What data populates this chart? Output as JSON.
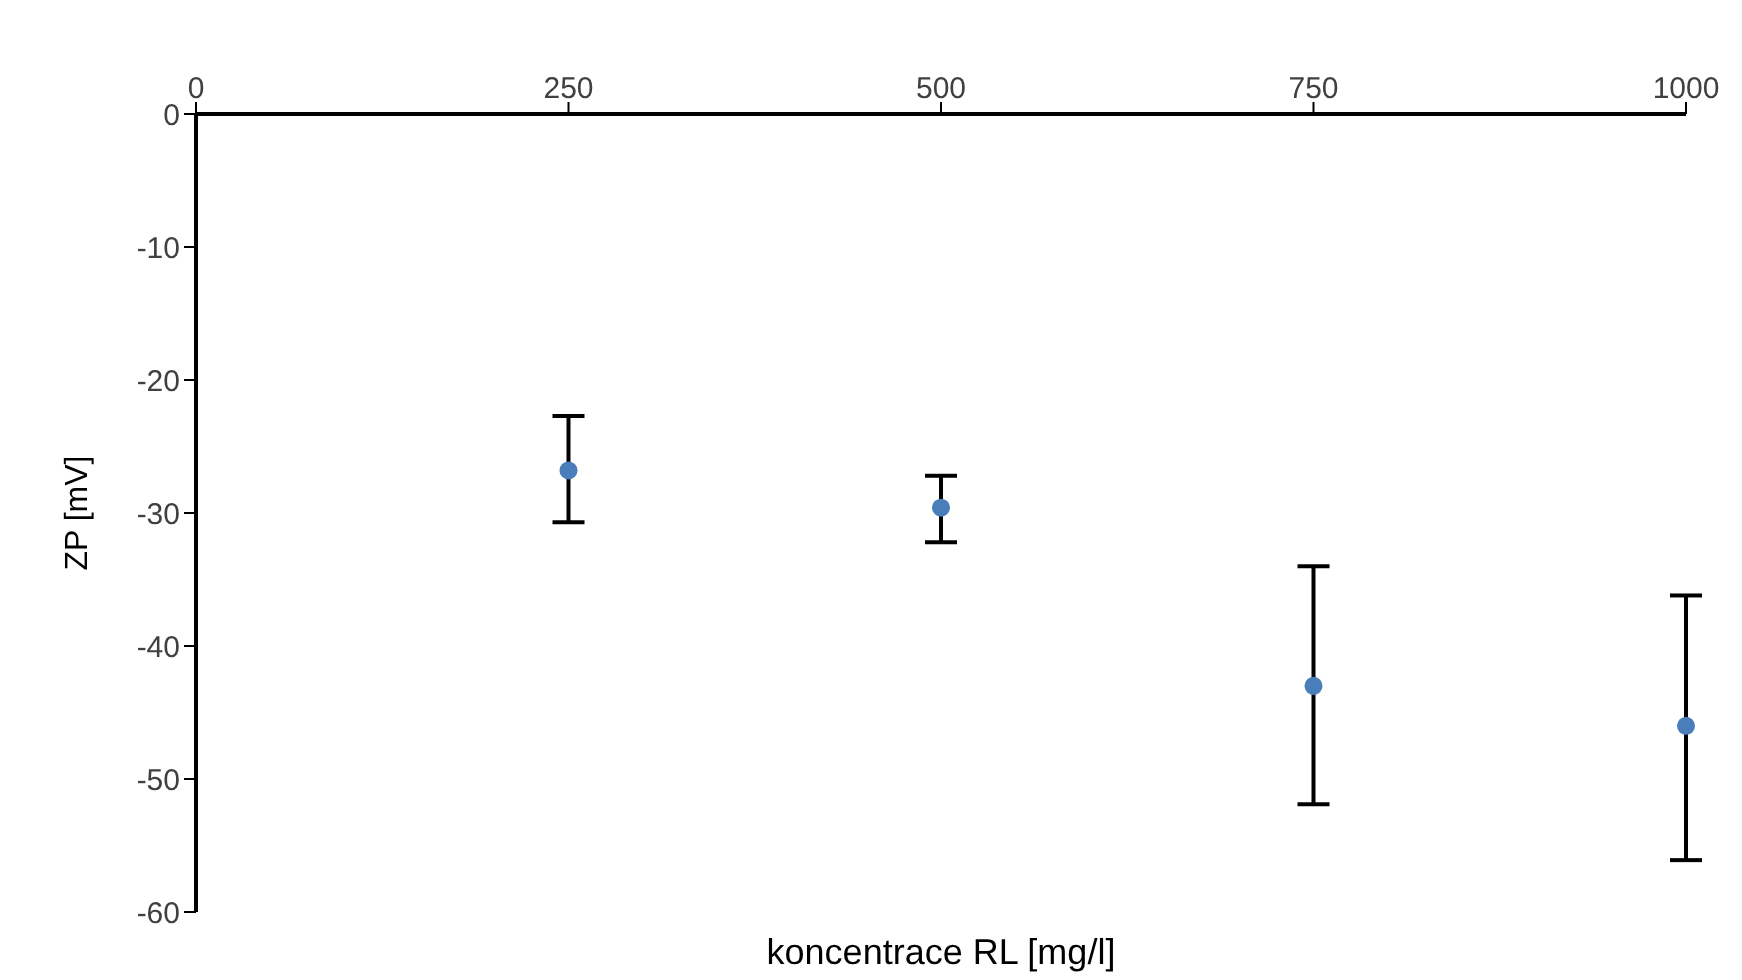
{
  "chart_data": {
    "type": "scatter",
    "xlabel": "koncentrace RL [mg/l]",
    "ylabel": "ZP [mV]",
    "x": [
      250,
      500,
      750,
      1000
    ],
    "values": [
      -26.8,
      -29.6,
      -43.0,
      -46.0
    ],
    "errors": [
      [
        -30.7,
        -22.7
      ],
      [
        -32.2,
        -27.2
      ],
      [
        -51.9,
        -34.0
      ],
      [
        -56.1,
        -36.2
      ]
    ],
    "color": "#4a7ebb",
    "marker": "circle",
    "xlim": [
      0,
      1000
    ],
    "xticks": [
      0,
      250,
      500,
      750,
      1000
    ],
    "ylim": [
      -60,
      0
    ],
    "yticks": [
      -60,
      -50,
      -40,
      -30,
      -20,
      -10,
      0
    ],
    "grid": false,
    "legend": false
  }
}
